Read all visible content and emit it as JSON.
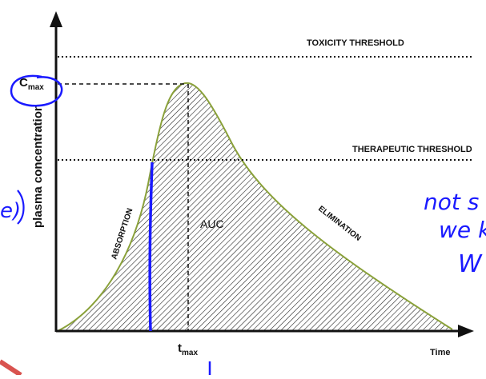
{
  "labels": {
    "toxicity_threshold": "TOXICITY THRESHOLD",
    "therapeutic_threshold": "THERAPEUTIC THRESHOLD",
    "y_axis": "plasma concentration",
    "x_axis": "Time",
    "cmax_main": "C",
    "cmax_sub": "max",
    "tmax_main": "t",
    "tmax_sub": "max",
    "absorption": "ABSORPTION",
    "elimination": "ELIMINATION",
    "auc": "AUC"
  },
  "annotations": {
    "handwritten_note_line1": "not s",
    "handwritten_note_line2": "we k",
    "handwritten_note_line3": "W",
    "left_fragment": "e)"
  },
  "colors": {
    "curve": "#8aa13a",
    "axis": "#111111",
    "hatch": "#222222",
    "ink_blue": "#1a1aff",
    "ink_red": "#d9534f"
  }
}
